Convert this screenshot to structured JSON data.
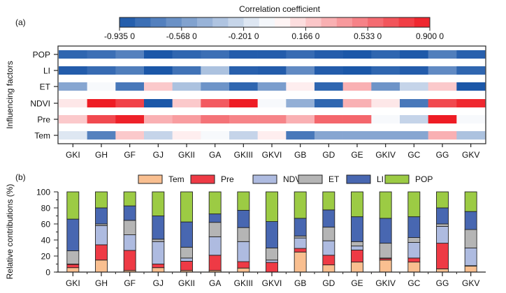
{
  "chart_data": [
    {
      "type": "heatmap",
      "panel_label": "(a)",
      "title": "",
      "colorbar": {
        "title": "Correlation coefficient",
        "range": [
          -0.935,
          0.9
        ],
        "ticks": [
          "-0.935 0",
          "-0.568 0",
          "-0.201 0",
          "0.166 0",
          "0.533 0",
          "0.900 0"
        ],
        "tick_values": [
          -0.935,
          -0.568,
          -0.201,
          0.166,
          0.533,
          0.9
        ],
        "low_color": "#1a56a8",
        "mid_color": "#ffffff",
        "high_color": "#ee1c24"
      },
      "xlabel": "",
      "ylabel": "Influencing factors",
      "x": [
        "GKI",
        "GH",
        "GF",
        "GJ",
        "GKII",
        "GA",
        "GKIII",
        "GKVI",
        "GB",
        "GD",
        "GE",
        "GKIV",
        "GC",
        "GG",
        "GKV"
      ],
      "y": [
        "POP",
        "LI",
        "ET",
        "NDVI",
        "Pre",
        "Tem"
      ],
      "values": [
        [
          -0.85,
          -0.8,
          -0.7,
          -0.93,
          -0.85,
          -0.8,
          -0.9,
          -0.9,
          -0.82,
          -0.9,
          -0.93,
          -0.85,
          -0.92,
          -0.72,
          -0.88
        ],
        [
          -0.9,
          -0.82,
          -0.72,
          -0.93,
          -0.78,
          -0.35,
          -0.88,
          -0.9,
          -0.65,
          -0.9,
          -0.93,
          -0.85,
          -0.9,
          -0.65,
          -0.85
        ],
        [
          -0.5,
          -0.05,
          -0.75,
          0.2,
          -0.35,
          -0.6,
          -0.85,
          -0.55,
          0.05,
          -0.85,
          0.3,
          -0.6,
          -0.25,
          0.2,
          -0.93
        ],
        [
          0.08,
          0.9,
          0.75,
          -0.93,
          0.2,
          0.65,
          0.9,
          -0.05,
          -0.45,
          -0.85,
          0.3,
          0.08,
          -0.75,
          0.72,
          0.85
        ],
        [
          0.2,
          0.72,
          0.88,
          0.3,
          0.38,
          0.55,
          0.48,
          0.48,
          0.3,
          0.6,
          0.6,
          -0.05,
          -0.25,
          0.9,
          -0.05
        ],
        [
          -0.15,
          -0.7,
          0.2,
          -0.25,
          0.05,
          -0.05,
          -0.25,
          0.05,
          -0.75,
          -0.5,
          -0.5,
          -0.5,
          -0.5,
          0.3,
          -0.35
        ]
      ]
    },
    {
      "type": "bar",
      "stacked": true,
      "panel_label": "(b)",
      "title": "",
      "xlabel": "",
      "ylabel": "Relative contributions (%)",
      "ylim": [
        0,
        100
      ],
      "yticks": [
        0,
        20,
        40,
        60,
        80,
        100
      ],
      "legend_position": "top-right",
      "categories": [
        "GKI",
        "GH",
        "GF",
        "GJ",
        "GKII",
        "GA",
        "GKIII",
        "GKVI",
        "GB",
        "GD",
        "GE",
        "GKIV",
        "GC",
        "GG",
        "GKV"
      ],
      "series": [
        {
          "name": "Tem",
          "color": "#f9bf90",
          "values": [
            5.5,
            15,
            2,
            5.5,
            2,
            2,
            5,
            0,
            25,
            9,
            12.5,
            15,
            12.5,
            4,
            7.5
          ]
        },
        {
          "name": "Pre",
          "color": "#ee3a45",
          "values": [
            4,
            19,
            25,
            4.5,
            11.5,
            19,
            8,
            12,
            4.5,
            12,
            15,
            2,
            5,
            32,
            0.5
          ]
        },
        {
          "name": "NDVI",
          "color": "#aebbe0",
          "values": [
            0.5,
            24,
            19.5,
            28,
            4,
            23,
            25,
            3,
            13,
            18,
            5,
            0.5,
            19.5,
            21,
            22
          ]
        },
        {
          "name": "ET",
          "color": "#b5b5b5",
          "values": [
            16.5,
            2,
            18,
            3,
            13.5,
            18,
            17.5,
            15,
            2.5,
            17,
            5.5,
            18.5,
            6,
            3,
            23
          ]
        },
        {
          "name": "LI",
          "color": "#4867b1",
          "values": [
            39.5,
            20,
            18,
            29,
            31.5,
            10.5,
            21.5,
            33,
            22,
            21.5,
            31,
            31,
            26,
            20,
            22.5
          ]
        },
        {
          "name": "POP",
          "color": "#9ccb44",
          "values": [
            34,
            20,
            17.5,
            30,
            37.5,
            27.5,
            23,
            37,
            33,
            22.5,
            31,
            33,
            31,
            20,
            24.5
          ]
        }
      ]
    }
  ]
}
